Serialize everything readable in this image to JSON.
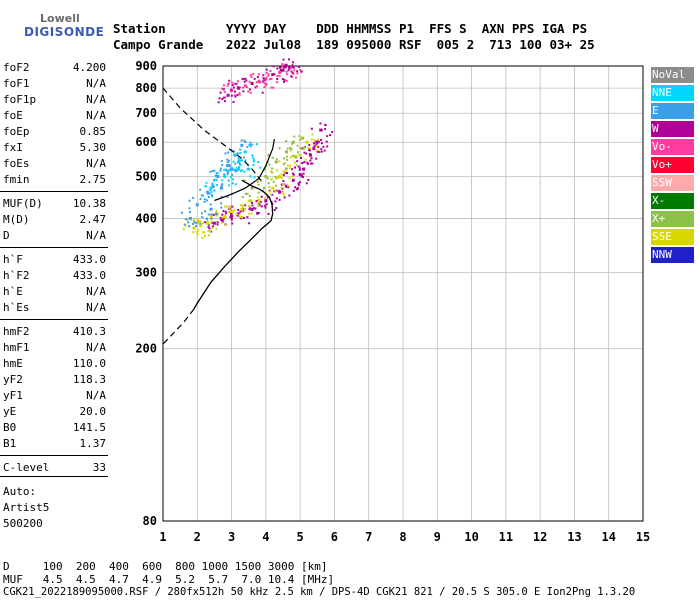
{
  "logo": {
    "line1": "Lowell",
    "line2": "DIGISONDE"
  },
  "header": {
    "row1": "Station        YYYY DAY    DDD HHMMSS P1  FFS S  AXN PPS IGA PS",
    "row2": "Campo Grande   2022 Jul08  189 095000 RSF  005 2  713 100 03+ 25"
  },
  "params": [
    {
      "label": "foF2",
      "value": "4.200"
    },
    {
      "label": "foF1",
      "value": "N/A"
    },
    {
      "label": "foF1p",
      "value": "N/A"
    },
    {
      "label": "foE",
      "value": "N/A"
    },
    {
      "label": "foEp",
      "value": "0.85"
    },
    {
      "label": "fxI",
      "value": "5.30"
    },
    {
      "label": "foEs",
      "value": "N/A"
    },
    {
      "label": "fmin",
      "value": "2.75"
    },
    {
      "label": "MUF(D)",
      "value": "10.38"
    },
    {
      "label": "M(D)",
      "value": "2.47"
    },
    {
      "label": "D",
      "value": "N/A"
    },
    {
      "label": "h`F",
      "value": "433.0"
    },
    {
      "label": "h`F2",
      "value": "433.0"
    },
    {
      "label": "h`E",
      "value": "N/A"
    },
    {
      "label": "h`Es",
      "value": "N/A"
    },
    {
      "label": "hmF2",
      "value": "410.3"
    },
    {
      "label": "hmF1",
      "value": "N/A"
    },
    {
      "label": "hmE",
      "value": "110.0"
    },
    {
      "label": "yF2",
      "value": "118.3"
    },
    {
      "label": "yF1",
      "value": "N/A"
    },
    {
      "label": "yE",
      "value": "20.0"
    },
    {
      "label": "B0",
      "value": "141.5"
    },
    {
      "label": "B1",
      "value": "1.37"
    },
    {
      "label": "C-level",
      "value": "33"
    }
  ],
  "auto": {
    "line1": "Auto:",
    "line2": "Artist5",
    "line3": "500200"
  },
  "legend": [
    {
      "label": "NoVal",
      "color": "#8c8c8c"
    },
    {
      "label": "NNE",
      "color": "#00d6ff"
    },
    {
      "label": "E",
      "color": "#3aa0e8"
    },
    {
      "label": "W",
      "color": "#b0009a"
    },
    {
      "label": "Vo-",
      "color": "#ff3ca0"
    },
    {
      "label": "Vo+",
      "color": "#ff0033"
    },
    {
      "label": "SSW",
      "color": "#ffaaaa"
    },
    {
      "label": "X-",
      "color": "#007a00"
    },
    {
      "label": "X+",
      "color": "#8cc048"
    },
    {
      "label": "SSE",
      "color": "#d8d800"
    },
    {
      "label": "NNW",
      "color": "#2020c8"
    }
  ],
  "footer": {
    "line1": "D     100  200  400  600  800 1000 1500 3000 [km]",
    "line2": "MUF   4.5  4.5  4.7  4.9  5.2  5.7  7.0 10.4 [MHz]",
    "line3": "CGK21_2022189095000.RSF / 280fx512h 50 kHz 2.5 km / DPS-4D CGK21 821 / 20.5 S 305.0 E Ion2Png 1.3.20"
  },
  "chart_data": {
    "type": "scatter",
    "xlim": [
      1,
      15
    ],
    "ylim": [
      80,
      900
    ],
    "x_ticks": [
      1,
      2,
      3,
      4,
      5,
      6,
      7,
      8,
      9,
      10,
      11,
      12,
      13,
      14,
      15
    ],
    "y_ticks": [
      80,
      200,
      300,
      400,
      500,
      600,
      700,
      800,
      900
    ],
    "grid": true,
    "y_scale": "log",
    "profile_solid": [
      [
        4.2,
        410
      ],
      [
        4.18,
        432
      ],
      [
        4.1,
        448
      ],
      [
        3.95,
        460
      ],
      [
        3.8,
        468
      ],
      [
        3.6,
        475
      ],
      [
        3.3,
        490
      ]
    ],
    "profile_solid_low": [
      [
        4.2,
        410
      ],
      [
        4.15,
        395
      ],
      [
        3.9,
        380
      ],
      [
        3.6,
        360
      ],
      [
        3.2,
        335
      ],
      [
        2.8,
        310
      ],
      [
        2.4,
        285
      ],
      [
        2.0,
        255
      ],
      [
        1.9,
        247
      ]
    ],
    "profile_dashed": [
      [
        1.9,
        247
      ],
      [
        1.6,
        230
      ],
      [
        1.0,
        205
      ]
    ],
    "upper_dashed": [
      [
        1.0,
        800
      ],
      [
        1.5,
        720
      ],
      [
        2.2,
        640
      ],
      [
        2.8,
        590
      ],
      [
        3.3,
        550
      ],
      [
        3.6,
        520
      ],
      [
        3.85,
        490
      ]
    ],
    "trace_curve": [
      [
        2.5,
        440
      ],
      [
        3.0,
        455
      ],
      [
        3.4,
        470
      ],
      [
        3.8,
        495
      ],
      [
        4.0,
        530
      ],
      [
        4.2,
        580
      ],
      [
        4.25,
        610
      ]
    ],
    "clusters": [
      {
        "direction": "W",
        "color": "#b0009a",
        "points": [
          [
            2.7,
            400
          ],
          [
            3.2,
            410
          ],
          [
            3.6,
            420
          ],
          [
            4.0,
            440
          ],
          [
            4.4,
            460
          ],
          [
            4.8,
            490
          ],
          [
            5.1,
            520
          ],
          [
            5.3,
            560
          ],
          [
            5.5,
            600
          ],
          [
            5.6,
            640
          ],
          [
            2.5,
            390
          ],
          [
            3.0,
            405
          ],
          [
            3.8,
            430
          ],
          [
            4.6,
            475
          ],
          [
            5.0,
            505
          ],
          [
            5.4,
            580
          ]
        ]
      },
      {
        "direction": "SSE",
        "color": "#d8d800",
        "points": [
          [
            1.9,
            380
          ],
          [
            2.3,
            390
          ],
          [
            2.8,
            405
          ],
          [
            3.3,
            420
          ],
          [
            3.8,
            440
          ],
          [
            4.2,
            470
          ],
          [
            4.6,
            520
          ],
          [
            5.0,
            560
          ],
          [
            5.2,
            600
          ],
          [
            2.1,
            385
          ],
          [
            3.0,
            415
          ],
          [
            4.4,
            500
          ]
        ]
      },
      {
        "direction": "E",
        "color": "#3aa0e8",
        "points": [
          [
            1.8,
            400
          ],
          [
            2.0,
            430
          ],
          [
            2.3,
            460
          ],
          [
            2.6,
            500
          ],
          [
            2.9,
            530
          ],
          [
            3.1,
            560
          ],
          [
            3.3,
            590
          ],
          [
            2.7,
            470
          ],
          [
            3.0,
            520
          ],
          [
            2.4,
            420
          ]
        ]
      },
      {
        "direction": "NNE",
        "color": "#00d6ff",
        "points": [
          [
            2.4,
            470
          ],
          [
            2.8,
            500
          ],
          [
            3.2,
            540
          ],
          [
            3.4,
            570
          ],
          [
            3.5,
            520
          ]
        ]
      },
      {
        "direction": "X+",
        "color": "#8cc048",
        "points": [
          [
            3.6,
            470
          ],
          [
            4.0,
            500
          ],
          [
            4.3,
            540
          ],
          [
            4.6,
            570
          ],
          [
            4.8,
            600
          ]
        ]
      },
      {
        "direction": "Vo-",
        "color": "#ff3ca0",
        "points": [
          [
            3.0,
            790
          ],
          [
            3.4,
            810
          ],
          [
            3.8,
            830
          ],
          [
            4.0,
            840
          ],
          [
            4.4,
            870
          ],
          [
            4.7,
            890
          ]
        ]
      },
      {
        "direction": "W",
        "color": "#b0009a",
        "points": [
          [
            2.9,
            770
          ],
          [
            3.2,
            800
          ],
          [
            3.6,
            820
          ],
          [
            4.2,
            860
          ],
          [
            4.5,
            880
          ],
          [
            4.8,
            895
          ]
        ]
      }
    ]
  }
}
